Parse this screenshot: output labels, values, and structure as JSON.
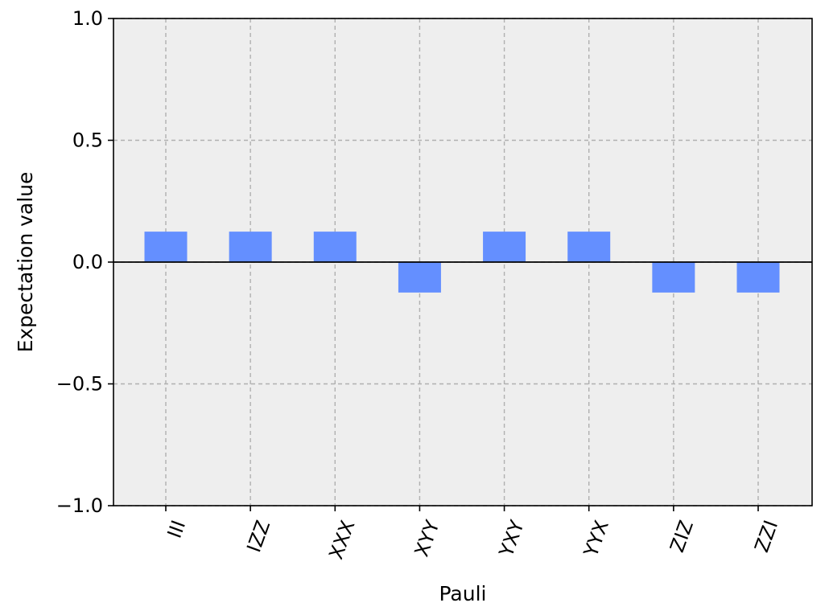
{
  "chart_data": {
    "type": "bar",
    "title": "",
    "xlabel": "Pauli",
    "ylabel": "Expectation value",
    "categories": [
      "III",
      "IZZ",
      "XXX",
      "XYY",
      "YXY",
      "YYX",
      "ZIZ",
      "ZZI"
    ],
    "values": [
      0.125,
      0.125,
      0.125,
      -0.125,
      0.125,
      0.125,
      -0.125,
      -0.125
    ],
    "ylim": [
      -1.0,
      1.0
    ],
    "yticks": [
      {
        "value": -1.0,
        "label": "−1.0"
      },
      {
        "value": -0.5,
        "label": "−0.5"
      },
      {
        "value": 0.0,
        "label": "0.0"
      },
      {
        "value": 0.5,
        "label": "0.5"
      },
      {
        "value": 1.0,
        "label": "1.0"
      }
    ],
    "grid": true,
    "zero_line": true,
    "colors": {
      "bar": "#648fff",
      "background": "#eeeeee",
      "grid": "#b0b0b0",
      "axis": "#000000"
    }
  }
}
